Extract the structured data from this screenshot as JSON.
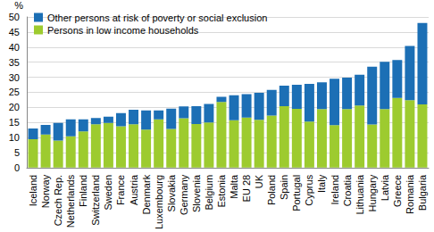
{
  "chart_data": {
    "type": "bar",
    "stacked": true,
    "grid": true,
    "legend": "upper left",
    "y_label": "%",
    "categories": [
      "Iceland",
      "Norway",
      "Czech Rep.",
      "Netherlands",
      "Finland",
      "Switzerland",
      "Sweden",
      "France",
      "Austria",
      "Denmark",
      "Luxembourg",
      "Slovakia",
      "Germany",
      "Slovenia",
      "Belgium",
      "Estonia",
      "Malta",
      "EU 28",
      "UK",
      "Poland",
      "Spain",
      "Portugal",
      "Cyprus",
      "Italy",
      "Ireland",
      "Croatia",
      "Lithuania",
      "Hungary",
      "Latvia",
      "Greece",
      "Romania",
      "Bulgaria"
    ],
    "series": [
      {
        "name": "Persons in low income households",
        "color": "#9dcb2f",
        "values": [
          9.4,
          11,
          9,
          10.4,
          12,
          14.4,
          14.8,
          13.7,
          14.4,
          12.6,
          16,
          12.8,
          16.4,
          14.5,
          15,
          21.8,
          15.7,
          16.6,
          15.9,
          17.3,
          20.4,
          19.5,
          15.3,
          19.4,
          14.1,
          19.4,
          20.6,
          14.3,
          19.4,
          23.1,
          22.4,
          21
        ]
      },
      {
        "name": "Other persons at risk of poverty or social exclusion",
        "color": "#1c6fb5",
        "values": [
          3.6,
          3.2,
          5.8,
          5.6,
          4,
          2.1,
          2.1,
          4.4,
          4.8,
          6.4,
          3,
          6.8,
          3.9,
          5.9,
          6.1,
          1.7,
          8.3,
          7.8,
          8.9,
          8.5,
          6.8,
          8,
          12.5,
          8.9,
          15.4,
          10.5,
          10.2,
          19.2,
          15.7,
          12.6,
          18,
          27
        ]
      }
    ],
    "ylim": [
      0,
      50
    ],
    "yticks": [
      0,
      5,
      10,
      15,
      20,
      25,
      30,
      35,
      40,
      45,
      50
    ]
  }
}
